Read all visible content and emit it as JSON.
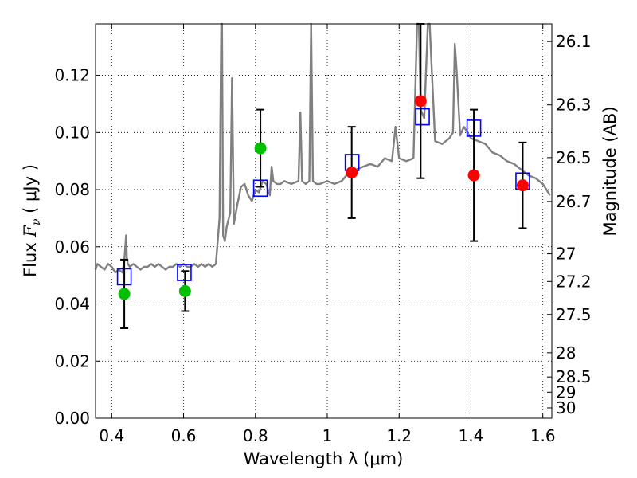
{
  "chart_data": {
    "type": "scatter",
    "xlabel": "Wavelength  λ (μm)",
    "ylabel": "Flux  F_ν  ( μJy )",
    "ylabel_parts": {
      "pre": "Flux  ",
      "sym": "F",
      "sub": "ν",
      "post": "  ( μJy )"
    },
    "y2label": "Magnitude (AB)",
    "xlim": [
      0.355,
      1.625
    ],
    "ylim": [
      0.0,
      0.138
    ],
    "x_ticks": [
      0.4,
      0.6,
      0.8,
      1.0,
      1.2,
      1.4,
      1.6
    ],
    "x_tick_labels": [
      "0.4",
      "0.6",
      "0.8",
      "1",
      "1.2",
      "1.4",
      "1.6"
    ],
    "y_ticks": [
      0.0,
      0.02,
      0.04,
      0.06,
      0.08,
      0.1,
      0.12
    ],
    "y_tick_labels": [
      "0.00",
      "0.02",
      "0.04",
      "0.06",
      "0.08",
      "0.10",
      "0.12"
    ],
    "mag_ticks": [
      26.1,
      26.3,
      26.5,
      26.7,
      27,
      27.2,
      27.5,
      28,
      28.5,
      29,
      30
    ],
    "mag_tick_labels": [
      "26.1",
      "26.3",
      "26.5",
      "26.7",
      "27",
      "27.2",
      "27.5",
      "28",
      "28.5",
      "29",
      "30"
    ],
    "grid": true,
    "colors": {
      "sed": "#808080",
      "model": "#0000ff",
      "detected": "#ff0000",
      "alt": "#00c000",
      "errorbar": "#000000",
      "grid": "#000000"
    },
    "sed": {
      "x": [
        0.355,
        0.36,
        0.37,
        0.38,
        0.39,
        0.4,
        0.41,
        0.42,
        0.43,
        0.435,
        0.44,
        0.442,
        0.445,
        0.45,
        0.46,
        0.47,
        0.48,
        0.49,
        0.5,
        0.51,
        0.52,
        0.53,
        0.54,
        0.55,
        0.56,
        0.57,
        0.58,
        0.59,
        0.6,
        0.61,
        0.62,
        0.63,
        0.64,
        0.65,
        0.66,
        0.67,
        0.68,
        0.69,
        0.7,
        0.705,
        0.707,
        0.71,
        0.715,
        0.72,
        0.73,
        0.735,
        0.74,
        0.75,
        0.76,
        0.77,
        0.78,
        0.79,
        0.8,
        0.81,
        0.82,
        0.83,
        0.84,
        0.845,
        0.85,
        0.86,
        0.87,
        0.88,
        0.9,
        0.92,
        0.925,
        0.93,
        0.94,
        0.95,
        0.955,
        0.96,
        0.97,
        0.98,
        1.0,
        1.02,
        1.04,
        1.06,
        1.08,
        1.1,
        1.12,
        1.14,
        1.16,
        1.18,
        1.19,
        1.2,
        1.22,
        1.24,
        1.25,
        1.255,
        1.26,
        1.27,
        1.28,
        1.285,
        1.3,
        1.32,
        1.34,
        1.35,
        1.355,
        1.36,
        1.37,
        1.38,
        1.4,
        1.42,
        1.44,
        1.46,
        1.48,
        1.5,
        1.52,
        1.54,
        1.56,
        1.58,
        1.6,
        1.62
      ],
      "y": [
        0.052,
        0.054,
        0.053,
        0.052,
        0.054,
        0.053,
        0.051,
        0.052,
        0.051,
        0.055,
        0.064,
        0.056,
        0.054,
        0.053,
        0.054,
        0.053,
        0.052,
        0.053,
        0.053,
        0.054,
        0.053,
        0.054,
        0.053,
        0.052,
        0.053,
        0.053,
        0.054,
        0.053,
        0.054,
        0.053,
        0.053,
        0.054,
        0.053,
        0.054,
        0.053,
        0.054,
        0.053,
        0.054,
        0.07,
        0.138,
        0.138,
        0.064,
        0.062,
        0.067,
        0.072,
        0.119,
        0.068,
        0.075,
        0.081,
        0.082,
        0.078,
        0.076,
        0.08,
        0.079,
        0.083,
        0.082,
        0.078,
        0.088,
        0.083,
        0.082,
        0.082,
        0.083,
        0.082,
        0.083,
        0.107,
        0.083,
        0.082,
        0.083,
        0.138,
        0.083,
        0.082,
        0.082,
        0.083,
        0.082,
        0.083,
        0.086,
        0.087,
        0.088,
        0.089,
        0.088,
        0.091,
        0.09,
        0.102,
        0.091,
        0.09,
        0.091,
        0.138,
        0.138,
        0.108,
        0.105,
        0.138,
        0.138,
        0.097,
        0.096,
        0.098,
        0.1,
        0.131,
        0.122,
        0.099,
        0.102,
        0.098,
        0.097,
        0.096,
        0.093,
        0.092,
        0.09,
        0.089,
        0.087,
        0.085,
        0.084,
        0.082,
        0.078
      ]
    },
    "model_points": {
      "x": [
        0.435,
        0.602,
        0.814,
        1.069,
        1.265,
        1.408,
        1.544
      ],
      "y": [
        0.0495,
        0.051,
        0.0805,
        0.0895,
        0.1055,
        0.1015,
        0.083
      ]
    },
    "observed_points": [
      {
        "x": 0.435,
        "y": 0.0435,
        "err_lo": 0.0315,
        "err_hi": 0.0555,
        "color": "alt"
      },
      {
        "x": 0.604,
        "y": 0.0445,
        "err_lo": 0.0375,
        "err_hi": 0.0515,
        "color": "alt"
      },
      {
        "x": 0.814,
        "y": 0.0945,
        "err_lo": 0.081,
        "err_hi": 0.108,
        "color": "alt"
      },
      {
        "x": 1.068,
        "y": 0.086,
        "err_lo": 0.07,
        "err_hi": 0.102,
        "color": "detected"
      },
      {
        "x": 1.26,
        "y": 0.111,
        "err_lo": 0.084,
        "err_hi": 0.138,
        "color": "detected"
      },
      {
        "x": 1.408,
        "y": 0.085,
        "err_lo": 0.062,
        "err_hi": 0.108,
        "color": "detected"
      },
      {
        "x": 1.544,
        "y": 0.0815,
        "err_lo": 0.0665,
        "err_hi": 0.0965,
        "color": "detected"
      }
    ]
  }
}
